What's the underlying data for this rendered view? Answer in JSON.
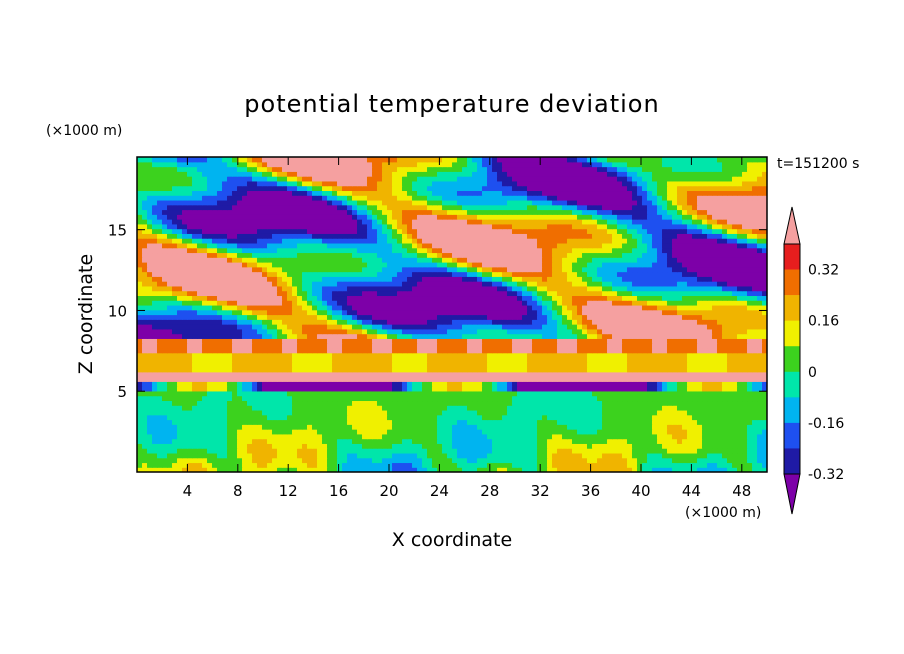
{
  "chart_data": {
    "type": "heatmap",
    "title": "potential temperature deviation",
    "xlabel": "X coordinate",
    "ylabel": "Z coordinate",
    "x_unit": "(×1000 m)",
    "y_unit": "(×1000 m)",
    "time_label": "t=151200 s",
    "xlim": [
      0,
      50
    ],
    "ylim": [
      0,
      19.5
    ],
    "x_ticks": [
      4,
      8,
      12,
      16,
      20,
      24,
      28,
      32,
      36,
      40,
      44,
      48
    ],
    "y_ticks": [
      5,
      10,
      15
    ],
    "colorbar": {
      "levels": [
        -0.4,
        -0.32,
        -0.24,
        -0.16,
        -0.08,
        0,
        0.08,
        0.16,
        0.24,
        0.32,
        0.4
      ],
      "labeled_ticks": [
        "0.32",
        "0.16",
        "0",
        "-0.16",
        "-0.32"
      ],
      "colors": [
        "#7d00a8",
        "#1f1aa5",
        "#1e50f0",
        "#00b4f0",
        "#00e6aa",
        "#3cd21e",
        "#f0f000",
        "#f0b400",
        "#f06e00",
        "#e61e1e",
        "#f5a0a0"
      ],
      "extend": "both"
    },
    "field_bands": [
      {
        "z_range": [
          0,
          5
        ],
        "description_values": [
          -0.16,
          0.32
        ]
      },
      {
        "z_range": [
          5.5,
          8
        ],
        "description_values": [
          0.16,
          0.4
        ]
      },
      {
        "z_range": [
          8,
          19.5
        ],
        "description_values": [
          -0.4,
          0.4
        ]
      }
    ]
  }
}
